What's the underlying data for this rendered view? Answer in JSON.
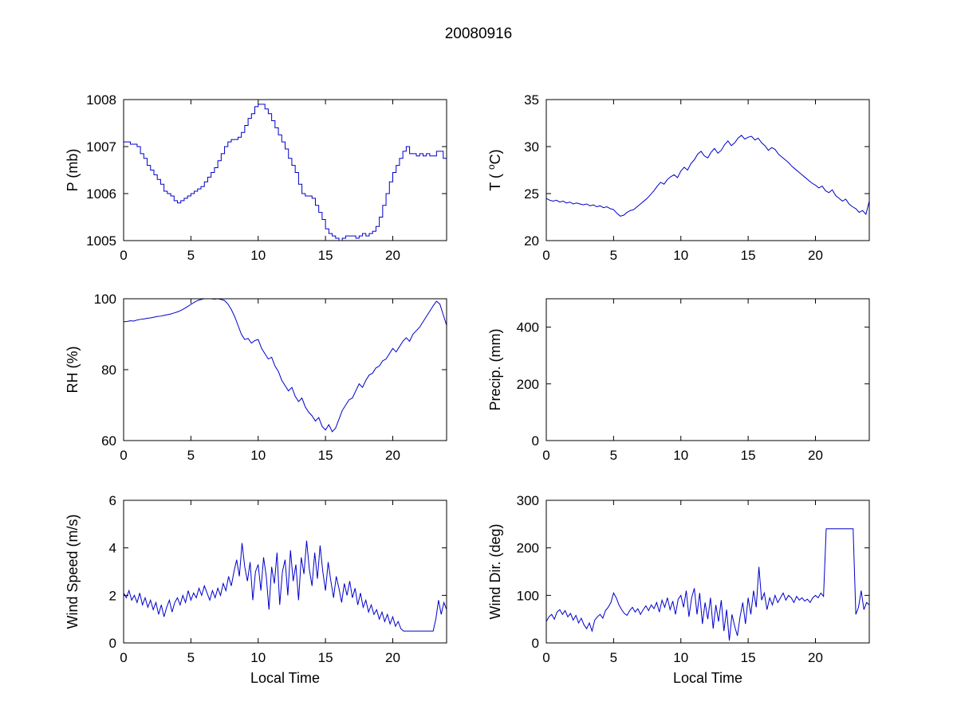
{
  "title": "20080916",
  "style": {
    "line_color": "#0000cc",
    "axis_color": "#000000",
    "background": "#ffffff"
  },
  "chart_data": [
    {
      "type": "line",
      "name": "pressure",
      "ylabel": "P (mb)",
      "xlabel": "",
      "xlim": [
        0,
        24
      ],
      "ylim": [
        1005,
        1008
      ],
      "xticks": [
        0,
        5,
        10,
        15,
        20
      ],
      "yticks": [
        1005,
        1006,
        1007,
        1008
      ],
      "grid": false,
      "interp": "step",
      "x_start": 0,
      "x_step": 0.25,
      "y": [
        1007.1,
        1007.1,
        1007.05,
        1007.05,
        1007.0,
        1006.85,
        1006.75,
        1006.6,
        1006.5,
        1006.4,
        1006.3,
        1006.2,
        1006.05,
        1006.0,
        1005.95,
        1005.85,
        1005.8,
        1005.85,
        1005.9,
        1005.95,
        1006.0,
        1006.05,
        1006.1,
        1006.15,
        1006.25,
        1006.35,
        1006.45,
        1006.55,
        1006.7,
        1006.85,
        1007.0,
        1007.1,
        1007.15,
        1007.15,
        1007.2,
        1007.3,
        1007.45,
        1007.6,
        1007.7,
        1007.85,
        1007.9,
        1007.9,
        1007.8,
        1007.7,
        1007.55,
        1007.4,
        1007.25,
        1007.1,
        1006.95,
        1006.75,
        1006.6,
        1006.45,
        1006.2,
        1006.0,
        1005.95,
        1005.95,
        1005.9,
        1005.75,
        1005.6,
        1005.45,
        1005.25,
        1005.15,
        1005.1,
        1005.05,
        1005.0,
        1005.05,
        1005.1,
        1005.1,
        1005.1,
        1005.05,
        1005.1,
        1005.15,
        1005.1,
        1005.15,
        1005.2,
        1005.3,
        1005.5,
        1005.75,
        1006.0,
        1006.25,
        1006.45,
        1006.6,
        1006.75,
        1006.9,
        1007.0,
        1006.85,
        1006.85,
        1006.8,
        1006.85,
        1006.8,
        1006.85,
        1006.8,
        1006.8,
        1006.9,
        1006.9,
        1006.75,
        1006.75
      ]
    },
    {
      "type": "line",
      "name": "temperature",
      "ylabel": "T ( ^oC)",
      "xlabel": "",
      "xlim": [
        0,
        24
      ],
      "ylim": [
        20,
        35
      ],
      "xticks": [
        0,
        5,
        10,
        15,
        20
      ],
      "yticks": [
        20,
        25,
        30,
        35
      ],
      "grid": false,
      "interp": "linear",
      "x_start": 0,
      "x_step": 0.25,
      "y": [
        24.5,
        24.3,
        24.2,
        24.3,
        24.1,
        24.2,
        24.0,
        24.1,
        23.9,
        24.0,
        23.9,
        23.8,
        23.9,
        23.7,
        23.8,
        23.6,
        23.7,
        23.5,
        23.6,
        23.4,
        23.3,
        22.9,
        22.6,
        22.7,
        23.0,
        23.2,
        23.3,
        23.6,
        23.9,
        24.2,
        24.5,
        24.9,
        25.3,
        25.8,
        26.2,
        26.0,
        26.5,
        26.8,
        27.0,
        26.7,
        27.4,
        27.8,
        27.5,
        28.2,
        28.6,
        29.2,
        29.5,
        29.0,
        28.8,
        29.4,
        29.8,
        29.3,
        29.6,
        30.2,
        30.6,
        30.1,
        30.4,
        30.9,
        31.2,
        30.8,
        31.0,
        31.1,
        30.7,
        30.9,
        30.4,
        30.1,
        29.6,
        29.9,
        29.7,
        29.2,
        28.9,
        28.6,
        28.3,
        27.9,
        27.6,
        27.3,
        27.0,
        26.7,
        26.4,
        26.1,
        25.9,
        25.6,
        25.8,
        25.3,
        25.1,
        25.4,
        24.8,
        24.5,
        24.2,
        24.4,
        23.9,
        23.6,
        23.4,
        23.0,
        23.2,
        22.8,
        24.2
      ]
    },
    {
      "type": "line",
      "name": "relative-humidity",
      "ylabel": "RH (%)",
      "xlabel": "",
      "xlim": [
        0,
        24
      ],
      "ylim": [
        60,
        100
      ],
      "xticks": [
        0,
        5,
        10,
        15,
        20
      ],
      "yticks": [
        60,
        80,
        100
      ],
      "grid": false,
      "interp": "linear",
      "x_start": 0,
      "x_step": 0.25,
      "y": [
        93.5,
        93.6,
        93.8,
        93.7,
        94.0,
        94.2,
        94.3,
        94.5,
        94.6,
        94.8,
        95.0,
        95.1,
        95.3,
        95.5,
        95.7,
        96.0,
        96.3,
        96.7,
        97.2,
        97.8,
        98.4,
        99.0,
        99.5,
        99.8,
        100.0,
        100.0,
        100.0,
        99.9,
        100.0,
        99.8,
        99.5,
        98.5,
        97.0,
        95.0,
        92.5,
        90.0,
        88.5,
        88.8,
        87.5,
        88.2,
        88.5,
        86.0,
        84.5,
        83.0,
        83.5,
        81.0,
        79.5,
        77.0,
        75.5,
        74.0,
        75.0,
        72.5,
        71.0,
        72.0,
        69.5,
        68.0,
        67.0,
        65.5,
        66.5,
        64.0,
        63.0,
        64.5,
        62.5,
        63.5,
        66.0,
        68.5,
        70.0,
        71.5,
        72.0,
        74.0,
        76.0,
        75.0,
        77.0,
        78.5,
        79.0,
        80.5,
        81.0,
        82.5,
        83.0,
        84.5,
        86.0,
        85.0,
        86.5,
        88.0,
        89.0,
        88.0,
        90.0,
        91.0,
        92.0,
        93.5,
        95.0,
        96.5,
        98.0,
        99.3,
        98.5,
        95.5,
        92.5
      ]
    },
    {
      "type": "line",
      "name": "precipitation",
      "ylabel": "Precip. (mm)",
      "xlabel": "",
      "xlim": [
        0,
        24
      ],
      "ylim": [
        0,
        500
      ],
      "xticks": [
        0,
        5,
        10,
        15,
        20
      ],
      "yticks": [
        0,
        200,
        400
      ],
      "grid": false,
      "interp": "linear",
      "x_start": 0,
      "x_step": 0.25,
      "y": []
    },
    {
      "type": "line",
      "name": "wind-speed",
      "ylabel": "Wind Speed (m/s)",
      "xlabel": "Local Time",
      "xlim": [
        0,
        24
      ],
      "ylim": [
        0,
        6
      ],
      "xticks": [
        0,
        5,
        10,
        15,
        20
      ],
      "yticks": [
        0,
        2,
        4,
        6
      ],
      "grid": false,
      "interp": "linear",
      "x_start": 0,
      "x_step": 0.2,
      "y": [
        2.1,
        1.9,
        2.2,
        1.8,
        2.0,
        1.7,
        2.1,
        1.6,
        1.9,
        1.5,
        1.8,
        1.4,
        1.7,
        1.2,
        1.6,
        1.1,
        1.5,
        1.8,
        1.3,
        1.7,
        1.9,
        1.6,
        2.0,
        1.7,
        2.2,
        1.8,
        2.1,
        1.9,
        2.3,
        2.0,
        2.4,
        2.1,
        1.8,
        2.2,
        1.9,
        2.3,
        2.0,
        2.5,
        2.2,
        2.8,
        2.4,
        3.0,
        3.5,
        2.8,
        4.2,
        3.2,
        2.6,
        3.4,
        1.8,
        3.0,
        3.3,
        2.2,
        3.6,
        2.8,
        1.4,
        3.2,
        2.5,
        3.8,
        1.6,
        3.0,
        3.5,
        2.0,
        3.9,
        2.6,
        3.3,
        1.8,
        3.6,
        2.9,
        4.3,
        3.1,
        2.4,
        3.8,
        2.7,
        4.1,
        3.0,
        2.2,
        3.4,
        2.6,
        1.9,
        2.8,
        2.3,
        1.7,
        2.5,
        2.0,
        2.6,
        1.9,
        2.3,
        1.6,
        2.1,
        1.5,
        1.8,
        1.3,
        1.6,
        1.2,
        1.4,
        1.0,
        1.3,
        0.9,
        1.2,
        0.8,
        1.1,
        0.7,
        0.9,
        0.6,
        0.5,
        0.5,
        0.5,
        0.5,
        0.5,
        0.5,
        0.5,
        0.5,
        0.5,
        0.5,
        0.5,
        0.5,
        1.0,
        1.8,
        1.2,
        1.7,
        1.4
      ]
    },
    {
      "type": "line",
      "name": "wind-direction",
      "ylabel": "Wind Dir. (deg)",
      "xlabel": "Local Time",
      "xlim": [
        0,
        24
      ],
      "ylim": [
        0,
        300
      ],
      "xticks": [
        0,
        5,
        10,
        15,
        20
      ],
      "yticks": [
        0,
        100,
        200,
        300
      ],
      "grid": false,
      "interp": "linear",
      "x_start": 0,
      "x_step": 0.2,
      "y": [
        45,
        55,
        60,
        50,
        65,
        70,
        60,
        68,
        55,
        62,
        48,
        58,
        42,
        52,
        38,
        30,
        42,
        25,
        48,
        55,
        60,
        52,
        68,
        75,
        85,
        105,
        95,
        80,
        70,
        62,
        58,
        68,
        75,
        65,
        72,
        60,
        70,
        78,
        68,
        80,
        72,
        85,
        65,
        90,
        75,
        95,
        70,
        88,
        60,
        92,
        100,
        75,
        110,
        55,
        95,
        115,
        60,
        105,
        40,
        85,
        50,
        95,
        30,
        80,
        45,
        90,
        25,
        70,
        5,
        60,
        35,
        15,
        55,
        85,
        40,
        95,
        60,
        110,
        75,
        160,
        90,
        105,
        70,
        95,
        80,
        100,
        85,
        95,
        105,
        90,
        100,
        95,
        85,
        98,
        90,
        95,
        88,
        92,
        85,
        95,
        100,
        95,
        105,
        98,
        240,
        240,
        240,
        240,
        240,
        240,
        240,
        240,
        240,
        240,
        240,
        60,
        75,
        110,
        70,
        85,
        80
      ]
    }
  ]
}
